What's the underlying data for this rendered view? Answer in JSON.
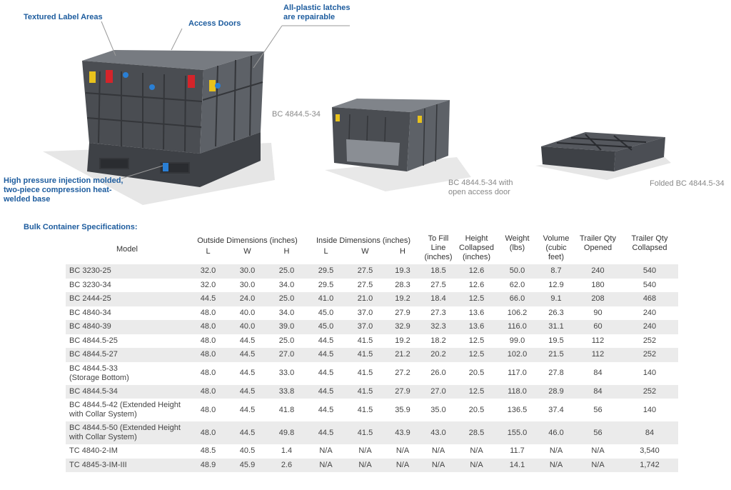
{
  "annotations": {
    "label_areas": "Textured Label Areas",
    "access_doors": "Access Doors",
    "latches": [
      "All-plastic latches",
      "are repairable"
    ],
    "base": [
      "High pressure injection molded,",
      "two-piece compression heat-",
      "welded base"
    ]
  },
  "captions": {
    "main": "BC 4844.5-34",
    "open": [
      "BC 4844.5-34 with",
      "open access door"
    ],
    "folded": "Folded BC 4844.5-34"
  },
  "table": {
    "title": "Bulk Container Specifications:",
    "headers": {
      "model": "Model",
      "outside": "Outside Dimensions (inches)",
      "inside": "Inside Dimensions (inches)",
      "sub": [
        "L",
        "W",
        "H",
        "L",
        "W",
        "H"
      ],
      "columns": [
        [
          "To Fill",
          "Line",
          "(inches)"
        ],
        [
          "Height",
          "Collapsed",
          "(inches)"
        ],
        [
          "Weight",
          "(lbs)"
        ],
        [
          "Volume",
          "(cubic",
          "feet)"
        ],
        [
          "Trailer Qty",
          "Opened"
        ],
        [
          "Trailer Qty",
          "Collapsed"
        ]
      ]
    },
    "rows": [
      [
        [
          "BC 3230-25"
        ],
        "32.0",
        "30.0",
        "25.0",
        "29.5",
        "27.5",
        "19.3",
        "18.5",
        "12.6",
        "50.0",
        "8.7",
        "240",
        "540"
      ],
      [
        [
          "BC 3230-34"
        ],
        "32.0",
        "30.0",
        "34.0",
        "29.5",
        "27.5",
        "28.3",
        "27.5",
        "12.6",
        "62.0",
        "12.9",
        "180",
        "540"
      ],
      [
        [
          "BC 2444-25"
        ],
        "44.5",
        "24.0",
        "25.0",
        "41.0",
        "21.0",
        "19.2",
        "18.4",
        "12.5",
        "66.0",
        "9.1",
        "208",
        "468"
      ],
      [
        [
          "BC 4840-34"
        ],
        "48.0",
        "40.0",
        "34.0",
        "45.0",
        "37.0",
        "27.9",
        "27.3",
        "13.6",
        "106.2",
        "26.3",
        "90",
        "240"
      ],
      [
        [
          "BC 4840-39"
        ],
        "48.0",
        "40.0",
        "39.0",
        "45.0",
        "37.0",
        "32.9",
        "32.3",
        "13.6",
        "116.0",
        "31.1",
        "60",
        "240"
      ],
      [
        [
          "BC 4844.5-25"
        ],
        "48.0",
        "44.5",
        "25.0",
        "44.5",
        "41.5",
        "19.2",
        "18.2",
        "12.5",
        "99.0",
        "19.5",
        "112",
        "252"
      ],
      [
        [
          "BC 4844.5-27"
        ],
        "48.0",
        "44.5",
        "27.0",
        "44.5",
        "41.5",
        "21.2",
        "20.2",
        "12.5",
        "102.0",
        "21.5",
        "112",
        "252"
      ],
      [
        [
          "BC 4844.5-33",
          "(Storage Bottom)"
        ],
        "48.0",
        "44.5",
        "33.0",
        "44.5",
        "41.5",
        "27.2",
        "26.0",
        "20.5",
        "117.0",
        "27.8",
        "84",
        "140"
      ],
      [
        [
          "BC 4844.5-34"
        ],
        "48.0",
        "44.5",
        "33.8",
        "44.5",
        "41.5",
        "27.9",
        "27.0",
        "12.5",
        "118.0",
        "28.9",
        "84",
        "252"
      ],
      [
        [
          "BC 4844.5-42 (Extended Height",
          "with Collar System)"
        ],
        "48.0",
        "44.5",
        "41.8",
        "44.5",
        "41.5",
        "35.9",
        "35.0",
        "20.5",
        "136.5",
        "37.4",
        "56",
        "140"
      ],
      [
        [
          "BC 4844.5-50 (Extended Height",
          "with Collar System)"
        ],
        "48.0",
        "44.5",
        "49.8",
        "44.5",
        "41.5",
        "43.9",
        "43.0",
        "28.5",
        "155.0",
        "46.0",
        "56",
        "84"
      ],
      [
        [
          "TC 4840-2-IM"
        ],
        "48.5",
        "40.5",
        "1.4",
        "N/A",
        "N/A",
        "N/A",
        "N/A",
        "N/A",
        "11.7",
        "N/A",
        "N/A",
        "3,540"
      ],
      [
        [
          "TC 4845-3-IM-III"
        ],
        "48.9",
        "45.9",
        "2.6",
        "N/A",
        "N/A",
        "N/A",
        "N/A",
        "N/A",
        "14.1",
        "N/A",
        "N/A",
        "1,742"
      ]
    ]
  }
}
